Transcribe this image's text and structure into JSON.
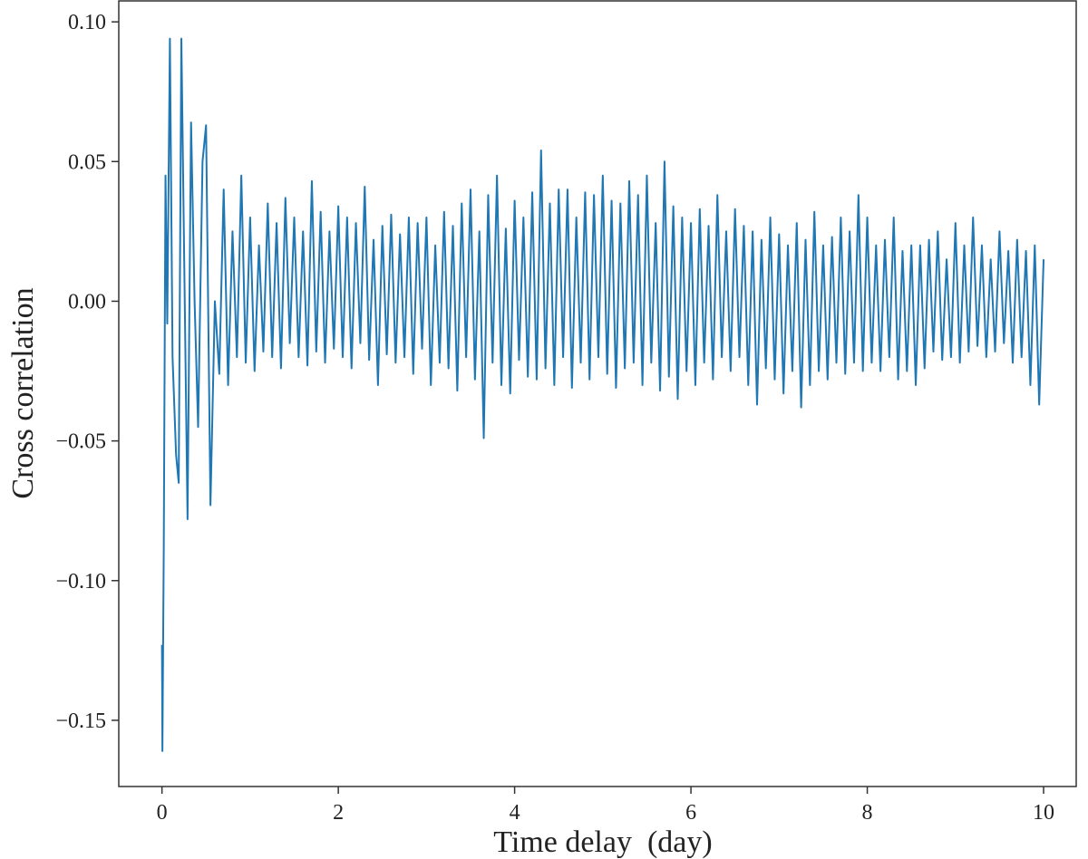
{
  "chart_data": {
    "type": "line",
    "xlabel": "Time delay  (day)",
    "ylabel": "Cross correlation",
    "color": "#1f77b4",
    "xlim": [
      -0.49,
      10.37
    ],
    "ylim": [
      -0.1737,
      0.1075
    ],
    "xticks": [
      0,
      2,
      4,
      6,
      8,
      10
    ],
    "yticks": [
      {
        "value": -0.15,
        "label": "−0.15"
      },
      {
        "value": -0.1,
        "label": "−0.10"
      },
      {
        "value": -0.05,
        "label": "−0.05"
      },
      {
        "value": 0,
        "label": "0.00"
      },
      {
        "value": 0.05,
        "label": "0.05"
      },
      {
        "value": 0.1,
        "label": "0.10"
      }
    ],
    "x": [
      0,
      0.005,
      0.02,
      0.04,
      0.06,
      0.09,
      0.12,
      0.16,
      0.19,
      0.22,
      0.25,
      0.29,
      0.33,
      0.37,
      0.41,
      0.46,
      0.5,
      0.55,
      0.6,
      0.65,
      0.7,
      0.75,
      0.8,
      0.85,
      0.9,
      0.95,
      1.0,
      1.05,
      1.1,
      1.15,
      1.2,
      1.25,
      1.3,
      1.35,
      1.4,
      1.45,
      1.5,
      1.55,
      1.6,
      1.65,
      1.7,
      1.75,
      1.8,
      1.85,
      1.9,
      1.95,
      2.0,
      2.05,
      2.1,
      2.15,
      2.2,
      2.25,
      2.3,
      2.35,
      2.4,
      2.45,
      2.5,
      2.55,
      2.6,
      2.65,
      2.7,
      2.75,
      2.8,
      2.85,
      2.9,
      2.95,
      3.0,
      3.05,
      3.1,
      3.15,
      3.2,
      3.25,
      3.3,
      3.35,
      3.4,
      3.45,
      3.5,
      3.55,
      3.6,
      3.65,
      3.7,
      3.75,
      3.8,
      3.85,
      3.9,
      3.95,
      4.0,
      4.05,
      4.1,
      4.15,
      4.2,
      4.25,
      4.3,
      4.35,
      4.4,
      4.45,
      4.5,
      4.55,
      4.6,
      4.65,
      4.7,
      4.75,
      4.8,
      4.85,
      4.9,
      4.95,
      5.0,
      5.05,
      5.1,
      5.15,
      5.2,
      5.25,
      5.3,
      5.35,
      5.4,
      5.45,
      5.5,
      5.55,
      5.6,
      5.65,
      5.7,
      5.75,
      5.8,
      5.85,
      5.9,
      5.95,
      6.0,
      6.05,
      6.1,
      6.15,
      6.2,
      6.25,
      6.3,
      6.35,
      6.4,
      6.45,
      6.5,
      6.55,
      6.6,
      6.65,
      6.7,
      6.75,
      6.8,
      6.85,
      6.9,
      6.95,
      7.0,
      7.05,
      7.1,
      7.15,
      7.2,
      7.25,
      7.3,
      7.35,
      7.4,
      7.45,
      7.5,
      7.55,
      7.6,
      7.65,
      7.7,
      7.75,
      7.8,
      7.85,
      7.9,
      7.95,
      8.0,
      8.05,
      8.1,
      8.15,
      8.2,
      8.25,
      8.3,
      8.35,
      8.4,
      8.45,
      8.5,
      8.55,
      8.6,
      8.65,
      8.7,
      8.75,
      8.8,
      8.85,
      8.9,
      8.95,
      9.0,
      9.05,
      9.1,
      9.15,
      9.2,
      9.25,
      9.3,
      9.35,
      9.4,
      9.45,
      9.5,
      9.55,
      9.6,
      9.65,
      9.7,
      9.75,
      9.8,
      9.85,
      9.9,
      9.95,
      10.0
    ],
    "values": [
      -0.123,
      -0.161,
      -0.09,
      0.045,
      -0.008,
      0.094,
      -0.02,
      -0.055,
      -0.065,
      0.094,
      0.02,
      -0.078,
      0.064,
      0.0,
      -0.045,
      0.05,
      0.063,
      -0.073,
      0.0,
      -0.026,
      0.04,
      -0.03,
      0.025,
      -0.02,
      0.045,
      -0.022,
      0.03,
      -0.025,
      0.02,
      -0.018,
      0.035,
      -0.02,
      0.028,
      -0.024,
      0.037,
      -0.015,
      0.03,
      -0.02,
      0.025,
      -0.023,
      0.043,
      -0.018,
      0.032,
      -0.022,
      0.025,
      -0.017,
      0.034,
      -0.02,
      0.03,
      -0.024,
      0.028,
      -0.015,
      0.041,
      -0.021,
      0.022,
      -0.03,
      0.027,
      -0.019,
      0.031,
      -0.022,
      0.024,
      -0.02,
      0.03,
      -0.026,
      0.028,
      -0.017,
      0.03,
      -0.03,
      0.02,
      -0.022,
      0.032,
      -0.024,
      0.027,
      -0.032,
      0.035,
      -0.02,
      0.04,
      -0.028,
      0.025,
      -0.049,
      0.038,
      -0.022,
      0.045,
      -0.03,
      0.026,
      -0.033,
      0.036,
      -0.021,
      0.03,
      -0.027,
      0.039,
      -0.028,
      0.054,
      -0.024,
      0.035,
      -0.03,
      0.04,
      -0.02,
      0.04,
      -0.031,
      0.03,
      -0.022,
      0.039,
      -0.028,
      0.038,
      -0.02,
      0.045,
      -0.026,
      0.036,
      -0.031,
      0.035,
      -0.024,
      0.043,
      -0.022,
      0.038,
      -0.03,
      0.045,
      -0.022,
      0.028,
      -0.032,
      0.05,
      -0.027,
      0.034,
      -0.035,
      0.03,
      -0.025,
      0.028,
      -0.03,
      0.033,
      -0.022,
      0.027,
      -0.028,
      0.038,
      -0.02,
      0.025,
      -0.025,
      0.033,
      -0.02,
      0.027,
      -0.03,
      0.025,
      -0.037,
      0.022,
      -0.024,
      0.03,
      -0.028,
      0.024,
      -0.033,
      0.02,
      -0.025,
      0.028,
      -0.038,
      0.022,
      -0.03,
      0.032,
      -0.025,
      0.02,
      -0.028,
      0.023,
      -0.022,
      0.03,
      -0.026,
      0.025,
      -0.022,
      0.038,
      -0.025,
      0.03,
      -0.022,
      0.02,
      -0.025,
      0.022,
      -0.02,
      0.03,
      -0.028,
      0.018,
      -0.025,
      0.02,
      -0.03,
      0.02,
      -0.024,
      0.022,
      -0.018,
      0.025,
      -0.021,
      0.015,
      -0.02,
      0.028,
      -0.022,
      0.02,
      -0.018,
      0.03,
      -0.016,
      0.02,
      -0.02,
      0.015,
      -0.018,
      0.025,
      -0.015,
      0.018,
      -0.022,
      0.022,
      -0.02,
      0.018,
      -0.03,
      0.02,
      -0.037,
      0.015
    ]
  }
}
